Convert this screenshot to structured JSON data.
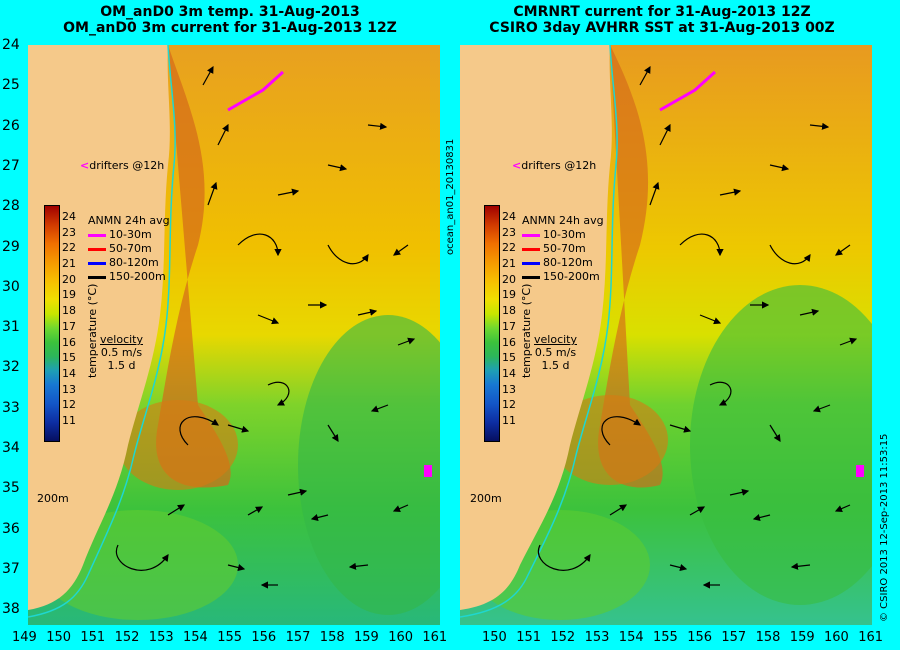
{
  "left_panel": {
    "title_line1": "OM_anD0 3m temp. 31-Aug-2013",
    "title_line2": "OM_anD0 3m current for 31-Aug-2013 12Z"
  },
  "right_panel": {
    "title_line1": "CMRNRT current for 31-Aug-2013 12Z",
    "title_line2": "CSIRO 3day AVHRR SST at 31-Aug-2013 00Z"
  },
  "y_axis_labels": [
    "24",
    "25",
    "26",
    "27",
    "28",
    "29",
    "30",
    "31",
    "32",
    "33",
    "34",
    "35",
    "36",
    "37",
    "38"
  ],
  "x_axis_left": [
    "149",
    "150",
    "151",
    "152",
    "153",
    "154",
    "155",
    "156",
    "157",
    "158",
    "159",
    "160",
    "161"
  ],
  "x_axis_right": [
    "150",
    "151",
    "152",
    "153",
    "154",
    "155",
    "156",
    "157",
    "158",
    "159",
    "160",
    "161"
  ],
  "colorbar": {
    "title": "temperature (°C)",
    "ticks": [
      "24",
      "23",
      "22",
      "21",
      "20",
      "19",
      "18",
      "17",
      "16",
      "15",
      "14",
      "13",
      "12",
      "11"
    ]
  },
  "anmn_legend": {
    "title": "ANMN 24h avg",
    "items": [
      {
        "label": "10-30m",
        "color": "#ff00ff"
      },
      {
        "label": "50-70m",
        "color": "#ff0000"
      },
      {
        "label": "80-120m",
        "color": "#0000ff"
      },
      {
        "label": "150-200m",
        "color": "#000000"
      }
    ]
  },
  "velocity_legend": {
    "label": "velocity",
    "speed": "0.5 m/s",
    "duration": "1.5 d"
  },
  "drifters_label": "drifters @12h",
  "isobath_label": "200m",
  "side_label_center": "ocean_an01_20130831",
  "side_label_right": "© CSIRO 2013   12-Sep-2013 11:53:15",
  "colors": {
    "background": "#00ffff",
    "land": "#f5c98a",
    "drifter": "#ff00ff"
  }
}
